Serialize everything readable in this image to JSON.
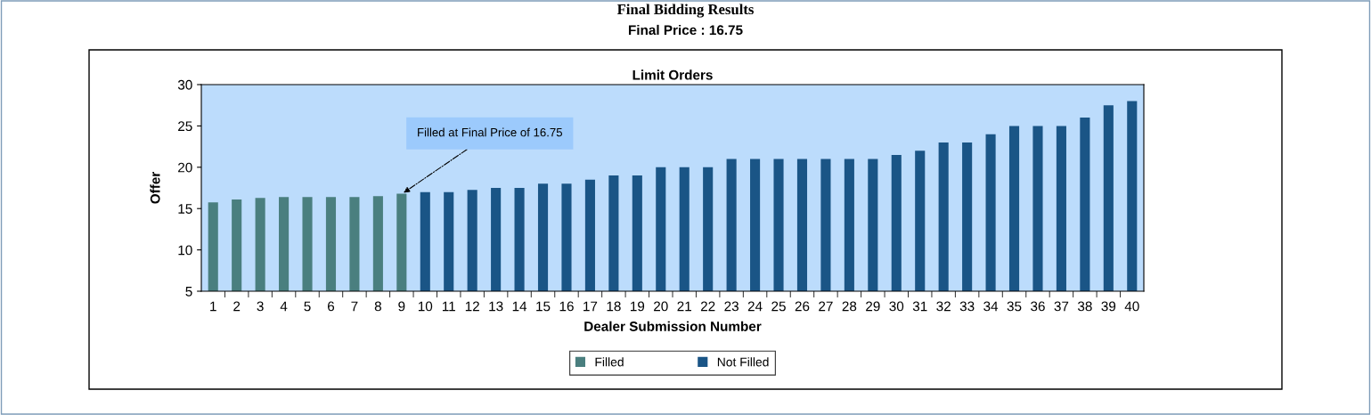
{
  "chart_data": {
    "type": "bar",
    "title": "Limit Orders",
    "xlabel": "Dealer Submission Number",
    "ylabel": "Offer",
    "categories": [
      "1",
      "2",
      "3",
      "4",
      "5",
      "6",
      "7",
      "8",
      "9",
      "10",
      "11",
      "12",
      "13",
      "14",
      "15",
      "16",
      "17",
      "18",
      "19",
      "20",
      "21",
      "22",
      "23",
      "24",
      "25",
      "26",
      "27",
      "28",
      "29",
      "30",
      "31",
      "32",
      "33",
      "34",
      "35",
      "36",
      "37",
      "38",
      "39",
      "40"
    ],
    "series": [
      {
        "name": "Filled",
        "color": "#4a7f7f",
        "values": [
          15.75,
          16.1,
          16.3,
          16.4,
          16.4,
          16.4,
          16.4,
          16.5,
          16.8,
          null,
          null,
          null,
          null,
          null,
          null,
          null,
          null,
          null,
          null,
          null,
          null,
          null,
          null,
          null,
          null,
          null,
          null,
          null,
          null,
          null,
          null,
          null,
          null,
          null,
          null,
          null,
          null,
          null,
          null,
          null
        ]
      },
      {
        "name": "Not Filled",
        "color": "#1a5586",
        "values": [
          null,
          null,
          null,
          null,
          null,
          null,
          null,
          null,
          null,
          17,
          17,
          17.25,
          17.5,
          17.5,
          18,
          18,
          18.5,
          19,
          19,
          20,
          20,
          20,
          21,
          21,
          21,
          21,
          21,
          21,
          21,
          21.5,
          22,
          23,
          23,
          24,
          25,
          25,
          25,
          26,
          27.5,
          28
        ]
      }
    ],
    "ylim": [
      5,
      30
    ],
    "yticks": [
      5,
      10,
      15,
      20,
      25,
      30
    ],
    "grid": false,
    "legend": "bottom",
    "annotations": [
      "Final Bidding Results",
      "Final Price : 16.75",
      {
        "text": "Filled at Final Price of 16.75",
        "x": "9",
        "y": 16.75
      }
    ]
  }
}
